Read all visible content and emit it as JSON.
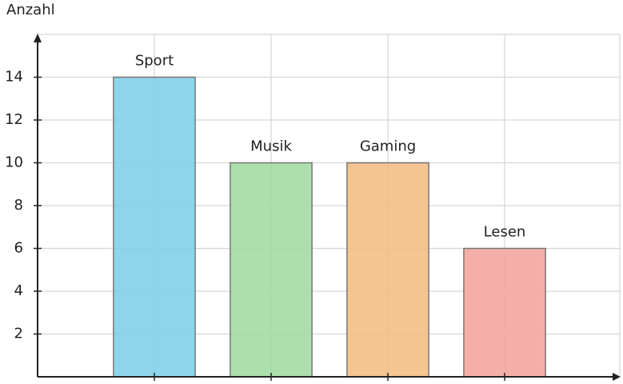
{
  "chart_data": {
    "type": "bar",
    "y_label": "Anzahl",
    "categories": [
      "Sport",
      "Musik",
      "Gaming",
      "Lesen"
    ],
    "values": [
      14,
      10,
      10,
      6
    ],
    "colors": [
      "#7ecfe8",
      "#a0dba2",
      "#f2bd82",
      "#f3a59c"
    ],
    "ylim": [
      0,
      16
    ],
    "yticks": [
      2,
      4,
      6,
      8,
      10,
      12,
      14
    ],
    "grid": true
  }
}
